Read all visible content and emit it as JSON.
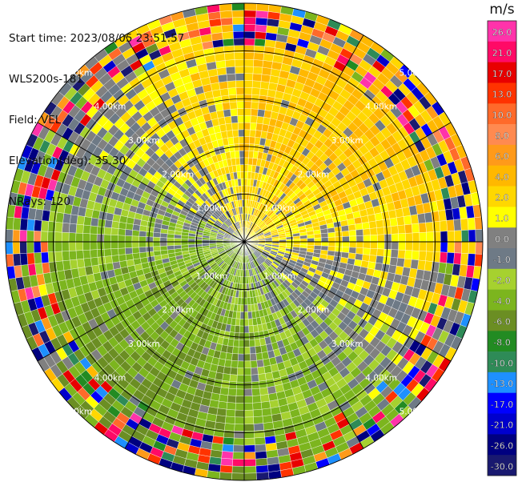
{
  "info": {
    "start_time": "Start time: 2023/08/05 23:51:57",
    "instrument": "WLS200s-181",
    "field": "Field: VEL",
    "elevation": "Elevation(deg): 35.30",
    "nrays": "NRays: 120"
  },
  "chart_data": {
    "type": "ppi_velocity",
    "title": "",
    "field": "VEL",
    "units": "m/s",
    "nrays": 120,
    "elevation_deg": 35.3,
    "max_range_km": 5.0,
    "range_rings": [
      {
        "label": "1.00km",
        "value": 1
      },
      {
        "label": "2.00km",
        "value": 2
      },
      {
        "label": "3.00km",
        "value": 3
      },
      {
        "label": "4.00km",
        "value": 4
      },
      {
        "label": "5.00km",
        "value": 5
      }
    ],
    "colorbar": {
      "unit_label": "m/s",
      "ticks": [
        "26.0",
        "21.0",
        "17.0",
        "13.0",
        "10.0",
        "8.0",
        "6.0",
        "4.0",
        "2.0",
        "1.0",
        "0.0",
        "-1.0",
        "-2.0",
        "-4.0",
        "-6.0",
        "-8.0",
        "-10.0",
        "-13.0",
        "-17.0",
        "-21.0",
        "-26.0",
        "-30.0"
      ],
      "bins": [
        {
          "low": 26,
          "high": 30,
          "color": "#ff33aa"
        },
        {
          "low": 21,
          "high": 26,
          "color": "#ff0a66"
        },
        {
          "low": 17,
          "high": 21,
          "color": "#e80000"
        },
        {
          "low": 13,
          "high": 17,
          "color": "#ff3300"
        },
        {
          "low": 10,
          "high": 13,
          "color": "#ff6a2a"
        },
        {
          "low": 8,
          "high": 10,
          "color": "#ff8a50"
        },
        {
          "low": 6,
          "high": 8,
          "color": "#ff9a1a"
        },
        {
          "low": 4,
          "high": 6,
          "color": "#ffb800"
        },
        {
          "low": 2,
          "high": 4,
          "color": "#ffd700"
        },
        {
          "low": 1,
          "high": 2,
          "color": "#ffff00"
        },
        {
          "low": 0,
          "high": 1,
          "color": "#808080"
        },
        {
          "low": -1,
          "high": 0,
          "color": "#6e7a86"
        },
        {
          "low": -2,
          "high": -1,
          "color": "#a6d12f"
        },
        {
          "low": -4,
          "high": -2,
          "color": "#7cb51e"
        },
        {
          "low": -6,
          "high": -4,
          "color": "#6b8e23"
        },
        {
          "low": -8,
          "high": -6,
          "color": "#228b22"
        },
        {
          "low": -10,
          "high": -8,
          "color": "#2e8b57"
        },
        {
          "low": -13,
          "high": -10,
          "color": "#1e90ff"
        },
        {
          "low": -17,
          "high": -13,
          "color": "#0000ff"
        },
        {
          "low": -21,
          "high": -17,
          "color": "#0000cd"
        },
        {
          "low": -26,
          "high": -21,
          "color": "#000080"
        },
        {
          "low": -30,
          "high": -26,
          "color": "#191970"
        }
      ]
    }
  }
}
